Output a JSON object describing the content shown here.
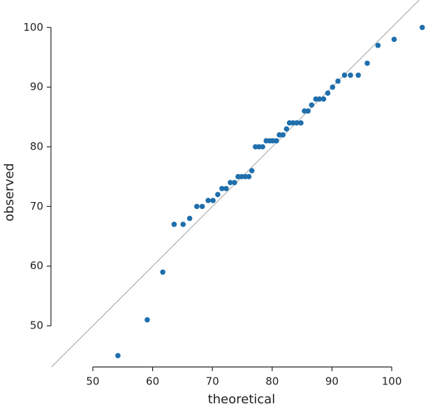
{
  "chart_data": {
    "type": "scatter",
    "x_label": "theoretical",
    "y_label": "observed",
    "color": "#1f6fad",
    "x": [
      54.2,
      59.1,
      61.7,
      63.6,
      65.1,
      66.2,
      67.4,
      68.3,
      69.3,
      70.1,
      70.9,
      71.6,
      72.3,
      73.0,
      73.7,
      74.3,
      74.9,
      75.5,
      76.1,
      76.6,
      77.2,
      77.8,
      78.4,
      79.0,
      79.6,
      80.1,
      80.7,
      81.2,
      81.8,
      82.4,
      82.9,
      83.5,
      84.1,
      84.8,
      85.4,
      86.0,
      86.6,
      87.3,
      87.9,
      88.6,
      89.3,
      90.1,
      91.0,
      92.1,
      93.1,
      94.4,
      95.9,
      97.7,
      100.4,
      105.1
    ],
    "values": [
      45,
      51,
      59,
      67,
      67,
      68,
      70,
      70,
      71,
      71,
      72,
      73,
      73,
      74,
      74,
      75,
      75,
      75,
      75,
      76,
      80,
      80,
      80,
      81,
      81,
      81,
      81,
      82,
      82,
      83,
      84,
      84,
      84,
      84,
      86,
      86,
      87,
      88,
      88,
      88,
      89,
      90,
      91,
      92,
      92,
      92,
      94,
      97,
      98,
      100
    ],
    "xlim": [
      43,
      105.7
    ],
    "ylim": [
      43.1,
      104.6
    ],
    "xticks": [
      50,
      60,
      70,
      80,
      90,
      100
    ],
    "yticks": [
      50,
      60,
      70,
      80,
      90,
      100
    ],
    "grid": false
  }
}
